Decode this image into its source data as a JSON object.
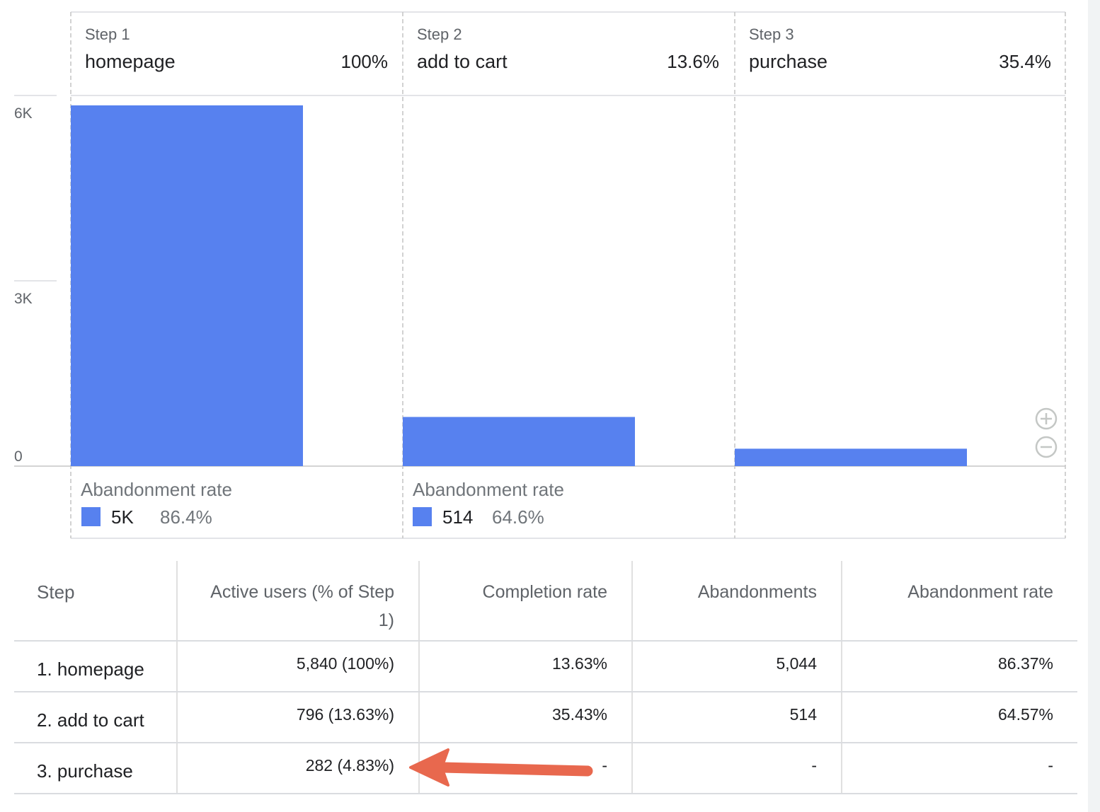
{
  "chart_data": {
    "type": "bar",
    "steps": [
      {
        "step_label": "Step 1",
        "name": "homepage",
        "rate": "100%"
      },
      {
        "step_label": "Step 2",
        "name": "add to cart",
        "rate": "13.6%"
      },
      {
        "step_label": "Step 3",
        "name": "purchase",
        "rate": "35.4%"
      }
    ],
    "categories": [
      "homepage",
      "add to cart",
      "purchase"
    ],
    "values": [
      5840,
      796,
      282
    ],
    "y_ticks": [
      {
        "value": 0,
        "label": "0"
      },
      {
        "value": 3000,
        "label": "3K"
      },
      {
        "value": 6000,
        "label": "6K"
      }
    ],
    "ylim": [
      0,
      6000
    ],
    "abandonment": [
      {
        "title": "Abandonment rate",
        "count": "5K",
        "rate": "86.4%"
      },
      {
        "title": "Abandonment rate",
        "count": "514",
        "rate": "64.6%"
      }
    ],
    "bar_color": "#5781ef"
  },
  "table": {
    "headers": [
      "Step",
      "Active users (% of Step 1)",
      "Completion rate",
      "Abandonments",
      "Abandonment rate"
    ],
    "rows": [
      [
        "1. homepage",
        "5,840 (100%)",
        "13.63%",
        "5,044",
        "86.37%"
      ],
      [
        "2. add to cart",
        "796 (13.63%)",
        "35.43%",
        "514",
        "64.57%"
      ],
      [
        "3. purchase",
        "282 (4.83%)",
        "-",
        "-",
        "-"
      ]
    ]
  },
  "annotation": {
    "color": "#e8684e"
  },
  "icons": {
    "zoom_in": "zoom-in-icon",
    "zoom_out": "zoom-out-icon"
  }
}
